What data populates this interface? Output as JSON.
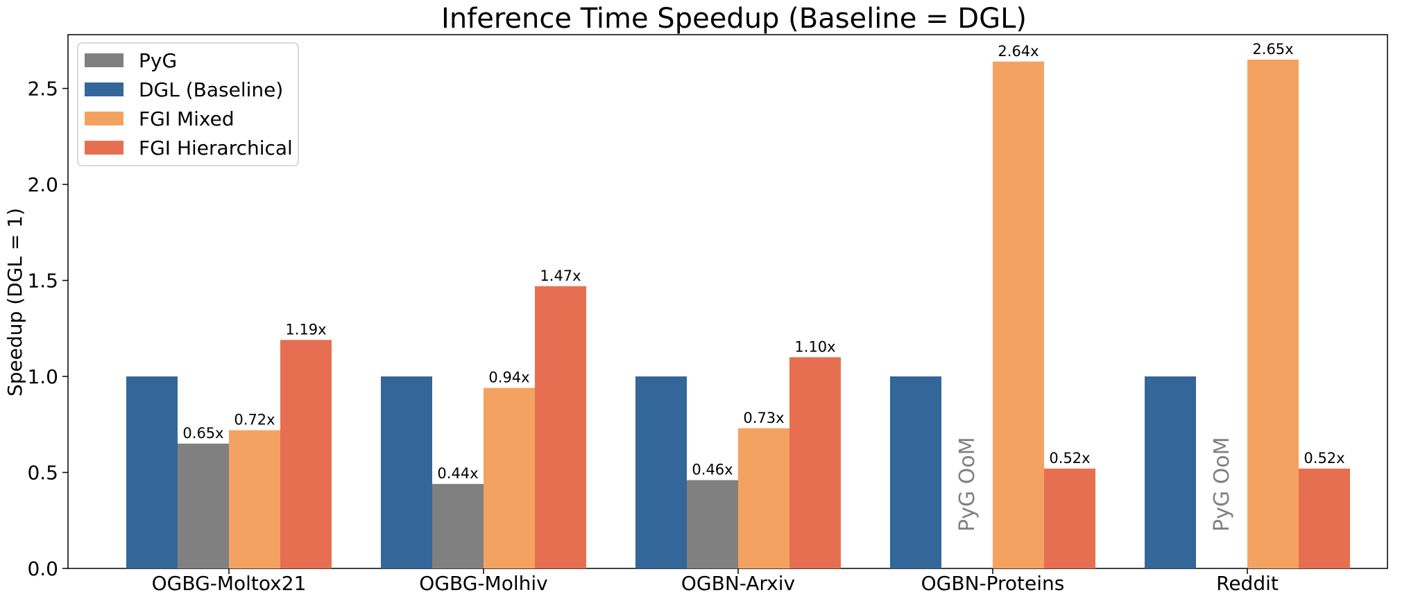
{
  "chart_data": {
    "type": "bar",
    "title": "Inference Time Speedup (Baseline = DGL)",
    "xlabel": "",
    "ylabel": "Speedup (DGL = 1)",
    "ylim": [
      0,
      2.78
    ],
    "yticks": [
      "0.0",
      "0.5",
      "1.0",
      "1.5",
      "2.0",
      "2.5"
    ],
    "categories": [
      "OGBG-Moltox21",
      "OGBG-Molhiv",
      "OGBN-Arxiv",
      "OGBN-Proteins",
      "Reddit"
    ],
    "series": [
      {
        "name": "DGL (Baseline)",
        "color": "#336699",
        "values": [
          1.0,
          1.0,
          1.0,
          1.0,
          1.0
        ],
        "labels": [
          "",
          "",
          "",
          "",
          ""
        ]
      },
      {
        "name": "PyG",
        "color": "#808080",
        "values": [
          0.65,
          0.44,
          0.46,
          null,
          null
        ],
        "labels": [
          "0.65x",
          "0.44x",
          "0.46x",
          "",
          ""
        ]
      },
      {
        "name": "FGI Mixed",
        "color": "#F4A261",
        "values": [
          0.72,
          0.94,
          0.73,
          2.64,
          2.65
        ],
        "labels": [
          "0.72x",
          "0.94x",
          "0.73x",
          "2.64x",
          "2.65x"
        ]
      },
      {
        "name": "FGI Hierarchical",
        "color": "#E76F51",
        "values": [
          1.19,
          1.47,
          1.1,
          0.52,
          0.52
        ],
        "labels": [
          "1.19x",
          "1.47x",
          "1.10x",
          "0.52x",
          "0.52x"
        ]
      }
    ],
    "annotations": [
      {
        "category": "OGBN-Proteins",
        "text": "PyG OoM"
      },
      {
        "category": "Reddit",
        "text": "PyG OoM"
      }
    ],
    "legend": {
      "position": "top-left",
      "items": [
        "PyG",
        "DGL (Baseline)",
        "FGI Mixed",
        "FGI Hierarchical"
      ],
      "colors": [
        "#808080",
        "#336699",
        "#F4A261",
        "#E76F51"
      ]
    },
    "grid": false
  }
}
